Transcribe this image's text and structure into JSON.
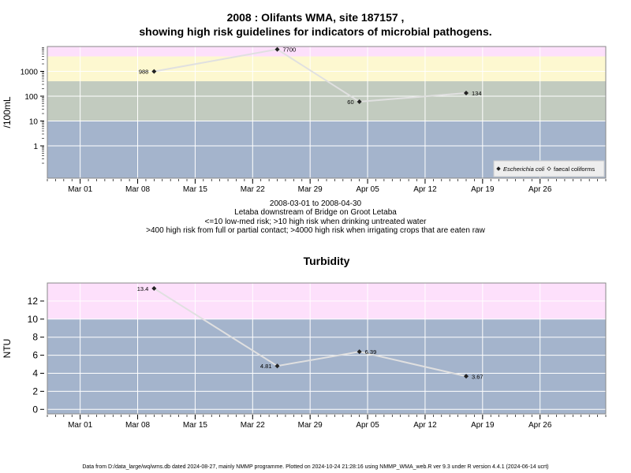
{
  "header": {
    "title_line1": "2008 : Olifants WMA, site 187157 ,",
    "title_line2": "showing high risk guidelines for indicators of microbial pathogens."
  },
  "notes": {
    "date_range": "2008-03-01 to 2008-04-30",
    "site_description": "Letaba downstream of Bridge on Groot Letaba",
    "guideline_1": "<=10 low-med risk; >10 high risk when drinking untreated water",
    "guideline_2": ">400 high risk from full or partial contact; >4000 high risk when irrigating crops that are eaten raw"
  },
  "footer": "Data from D:/data_large/wq/wms.db dated 2024-08-27, mainly NMMP programme. Plotted on 2024-10-24 21:28:16 using NMMP_WMA_web.R ver 9.3 under R version 4.4.1 (2024-06-14 ucrt)",
  "colors": {
    "band_pink": "#fde0fb",
    "band_yellow": "#fdf8d0",
    "band_green": "#c2cbbf",
    "band_blue": "#a4b4cc",
    "grid": "#ffffff",
    "line": "#e0e0e0",
    "point": "#222222"
  },
  "chart_data": [
    {
      "type": "line",
      "title": "",
      "ylabel": "/100mL",
      "xlabel": "",
      "y_scale": "log10",
      "xlim": [
        "2008-02-26",
        "2008-05-04"
      ],
      "ylim": [
        0.05,
        10000
      ],
      "x_ticks": [
        "2008-03-01",
        "2008-03-08",
        "2008-03-15",
        "2008-03-22",
        "2008-03-29",
        "2008-04-05",
        "2008-04-12",
        "2008-04-19",
        "2008-04-26"
      ],
      "x_tick_labels": [
        "Mar 01",
        "Mar 08",
        "Mar 15",
        "Mar 22",
        "Mar 29",
        "Apr 05",
        "Apr 12",
        "Apr 19",
        "Apr 26"
      ],
      "y_ticks": [
        1,
        10,
        100,
        1000
      ],
      "y_tick_labels": [
        "1",
        "10",
        "100",
        "1000"
      ],
      "bands": [
        {
          "from": 0.05,
          "to": 10,
          "color": "#a4b4cc"
        },
        {
          "from": 10,
          "to": 400,
          "color": "#c2cbbf"
        },
        {
          "from": 400,
          "to": 4000,
          "color": "#fdf8d0"
        },
        {
          "from": 4000,
          "to": 10000,
          "color": "#fde0fb"
        }
      ],
      "series": [
        {
          "name": "Escherichia coli",
          "marker": "filled-diamond",
          "points": [
            {
              "x": "2008-03-10",
              "y": 988,
              "label": "988"
            },
            {
              "x": "2008-03-25",
              "y": 7700,
              "label": "7700"
            },
            {
              "x": "2008-04-04",
              "y": 60,
              "label": "60"
            },
            {
              "x": "2008-04-17",
              "y": 134,
              "label": "134"
            }
          ]
        },
        {
          "name": "faecal coliforms",
          "marker": "open-diamond",
          "points": []
        }
      ],
      "legend": "bottom-right"
    },
    {
      "type": "line",
      "title": "Turbidity",
      "ylabel": "NTU",
      "xlabel": "",
      "y_scale": "linear",
      "xlim": [
        "2008-02-26",
        "2008-05-04"
      ],
      "ylim": [
        -0.5,
        14
      ],
      "x_ticks": [
        "2008-03-01",
        "2008-03-08",
        "2008-03-15",
        "2008-03-22",
        "2008-03-29",
        "2008-04-05",
        "2008-04-12",
        "2008-04-19",
        "2008-04-26"
      ],
      "x_tick_labels": [
        "Mar 01",
        "Mar 08",
        "Mar 15",
        "Mar 22",
        "Mar 29",
        "Apr 05",
        "Apr 12",
        "Apr 19",
        "Apr 26"
      ],
      "y_ticks": [
        0,
        2,
        4,
        6,
        8,
        10,
        12
      ],
      "y_tick_labels": [
        "0",
        "2",
        "4",
        "6",
        "8",
        "10",
        "12"
      ],
      "bands": [
        {
          "from": -0.5,
          "to": 10,
          "color": "#a4b4cc"
        },
        {
          "from": 10,
          "to": 14,
          "color": "#fde0fb"
        }
      ],
      "series": [
        {
          "marker": "filled-diamond",
          "points": [
            {
              "x": "2008-03-10",
              "y": 13.4,
              "label": "13.4",
              "label_side": "left"
            },
            {
              "x": "2008-03-25",
              "y": 4.81,
              "label": "4.81",
              "label_side": "left"
            },
            {
              "x": "2008-04-04",
              "y": 6.39,
              "label": "6.39",
              "label_side": "right"
            },
            {
              "x": "2008-04-17",
              "y": 3.67,
              "label": "3.67",
              "label_side": "right"
            }
          ]
        }
      ]
    }
  ]
}
